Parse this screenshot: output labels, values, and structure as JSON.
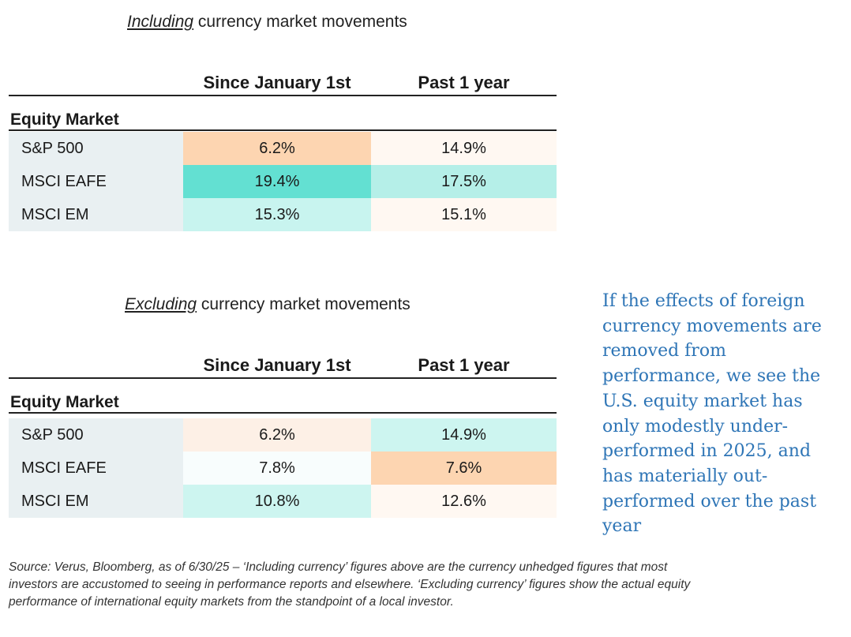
{
  "tables": [
    {
      "title_em": "Including",
      "title_rest": " currency market movements",
      "col1": "Since January 1st",
      "col2": "Past 1 year",
      "group_label": "Equity Market",
      "rows": [
        {
          "label": "S&P 500",
          "v1": "6.2%",
          "v2": "14.9%",
          "c1": "#fdd5b1",
          "c2": "#fff8f2"
        },
        {
          "label": "MSCI EAFE",
          "v1": "19.4%",
          "v2": "17.5%",
          "c1": "#63e0d2",
          "c2": "#b5efe8"
        },
        {
          "label": "MSCI EM",
          "v1": "15.3%",
          "v2": "15.1%",
          "c1": "#c8f4ef",
          "c2": "#fff8f2"
        }
      ]
    },
    {
      "title_em": "Excluding",
      "title_rest": " currency market movements",
      "col1": "Since January 1st",
      "col2": "Past 1 year",
      "group_label": "Equity Market",
      "rows": [
        {
          "label": "S&P 500",
          "v1": "6.2%",
          "v2": "14.9%",
          "c1": "#fdf0e6",
          "c2": "#cdf5f0"
        },
        {
          "label": "MSCI EAFE",
          "v1": "7.8%",
          "v2": "7.6%",
          "c1": "#f8fdfd",
          "c2": "#fdd5b1"
        },
        {
          "label": "MSCI EM",
          "v1": "10.8%",
          "v2": "12.6%",
          "c1": "#cdf5f0",
          "c2": "#fff8f2"
        }
      ]
    }
  ],
  "note": "If the effects of foreign currency movements are removed from performance, we see the U.S. equity market has only modestly under-performed in 2025, and has materially out-performed over the past year",
  "source": "Source: Verus, Bloomberg, as of 6/30/25 – ‘Including currency’ figures above are the currency unhedged figures that most investors are accustomed to seeing in performance reports and elsewhere. ‘Excluding currency’ figures show the actual equity performance of international equity markets from the standpoint of a local investor."
}
